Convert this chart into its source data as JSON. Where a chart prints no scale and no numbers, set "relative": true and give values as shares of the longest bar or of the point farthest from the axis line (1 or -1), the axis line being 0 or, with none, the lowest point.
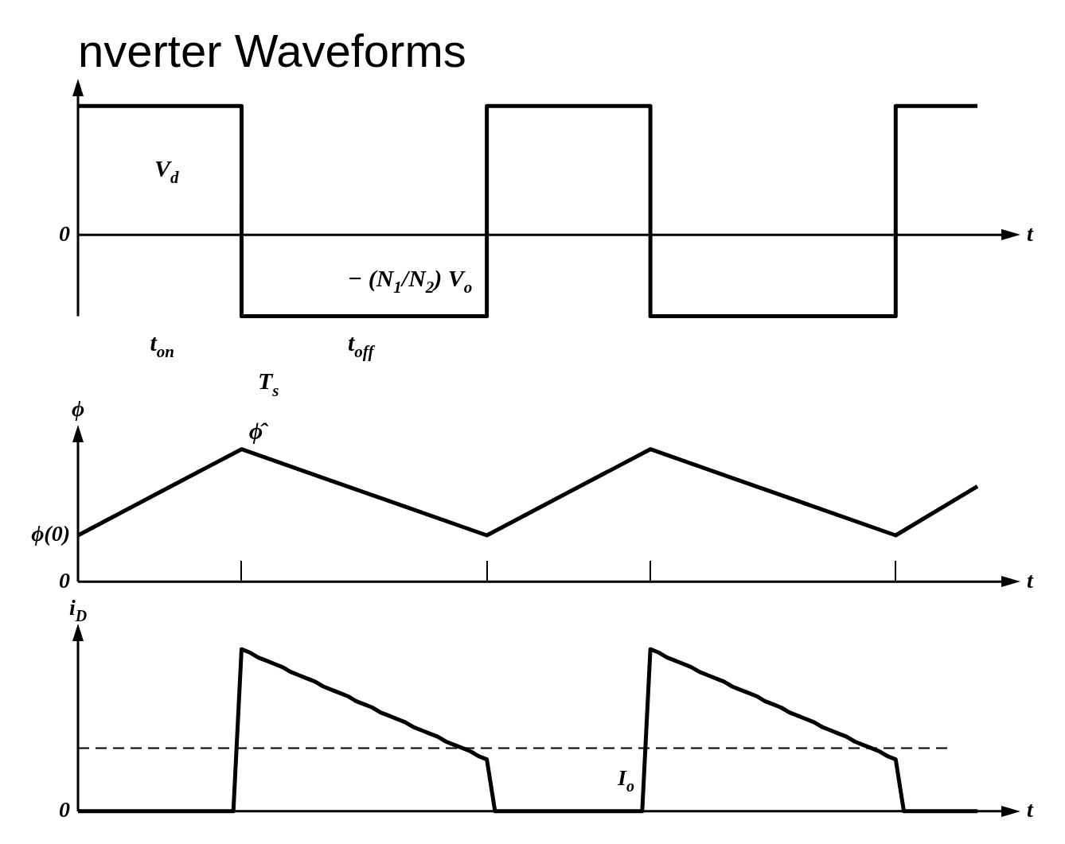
{
  "chart_data": [
    {
      "type": "step",
      "title": "nverter Waveforms",
      "xlabel": "t",
      "relative": true,
      "marker": "none",
      "legend": false,
      "line_style": "solid",
      "categories": [
        null,
        null,
        null,
        null,
        null,
        null,
        null,
        null,
        null,
        null,
        null,
        null
      ],
      "series": [
        {
          "color": "#000000",
          "values": [
            1,
            1,
            -0.63,
            -0.63,
            -0.63,
            1,
            1,
            -0.63,
            -0.63,
            -0.63,
            1,
            1
          ]
        }
      ],
      "annotations": [
        "0",
        "V$_{d}$",
        "− (N$_{1}$/N$_{2}$) V$_{o}$",
        "t$_{on}$",
        "t$_{off}$",
        "T$_{s}$"
      ]
    },
    {
      "type": "line",
      "ylabel": "ϕ",
      "xlabel": "t",
      "relative": true,
      "marker": "none",
      "legend": false,
      "line_style": "solid",
      "categories": [
        null,
        null,
        null,
        null,
        null,
        null,
        null,
        null,
        null,
        null,
        null,
        null
      ],
      "series": [
        {
          "color": "#000000",
          "values": [
            0.35,
            0.675,
            1,
            0.783,
            0.567,
            0.35,
            0.675,
            1,
            0.783,
            0.567,
            0.35,
            0.72
          ]
        }
      ],
      "annotations": [
        "0",
        "ϕ(0)",
        "ϕ̂"
      ]
    },
    {
      "type": "line",
      "ylabel": "i$_{D}$",
      "xlabel": "t",
      "relative": true,
      "marker": "none",
      "legend": false,
      "line_style": "solid",
      "categories": [
        null,
        null,
        null,
        null,
        null,
        null,
        null,
        null,
        null,
        null,
        null,
        null,
        null,
        null,
        null,
        null,
        null,
        null,
        null,
        null,
        null,
        null,
        null,
        null,
        null,
        null,
        null,
        null,
        null,
        null,
        null,
        null,
        null,
        null,
        null,
        null,
        null,
        null,
        null,
        null,
        null,
        null,
        null,
        null,
        null,
        null,
        null,
        null,
        null,
        null,
        null,
        null,
        null,
        null,
        null,
        null,
        null,
        null,
        null,
        null,
        null,
        null,
        null,
        null,
        null,
        null,
        null,
        null,
        null,
        null,
        null,
        null,
        null,
        null,
        null,
        null,
        null,
        null,
        null,
        null,
        null,
        null,
        null,
        null,
        null,
        null,
        null,
        null,
        null,
        null,
        null,
        null,
        null,
        null,
        null,
        null,
        null,
        null,
        null,
        null,
        null,
        null,
        null,
        null,
        null,
        null,
        null,
        null,
        null,
        null,
        null
      ],
      "series": [
        {
          "color": "#000000",
          "values": [
            0,
            0,
            0,
            0,
            0,
            0,
            0,
            0,
            0,
            0,
            0,
            0,
            0,
            0,
            0,
            0,
            0,
            0,
            0,
            0,
            1,
            0.98,
            0.95,
            0.93,
            0.91,
            0.89,
            0.86,
            0.84,
            0.82,
            0.8,
            0.77,
            0.75,
            0.73,
            0.71,
            0.68,
            0.66,
            0.64,
            0.61,
            0.59,
            0.57,
            0.55,
            0.52,
            0.5,
            0.48,
            0.46,
            0.43,
            0.41,
            0.39,
            0.37,
            0.34,
            0.32,
            0,
            0,
            0,
            0,
            0,
            0,
            0,
            0,
            0,
            0,
            0,
            0,
            0,
            0,
            0,
            0,
            0,
            0,
            0,
            1,
            0.98,
            0.95,
            0.93,
            0.91,
            0.89,
            0.86,
            0.84,
            0.82,
            0.8,
            0.77,
            0.75,
            0.73,
            0.71,
            0.68,
            0.66,
            0.64,
            0.61,
            0.59,
            0.57,
            0.55,
            0.52,
            0.5,
            0.48,
            0.46,
            0.43,
            0.41,
            0.39,
            0.37,
            0.34,
            0.32,
            0,
            0,
            0,
            0,
            0,
            0,
            0,
            0,
            0,
            0
          ]
        }
      ],
      "ref_lines": [
        {
          "axis": "y",
          "value": 0.39,
          "label": "I$_{o}$",
          "line_style": "dashed",
          "color": "#000000"
        }
      ],
      "annotations": [
        "0"
      ]
    }
  ]
}
